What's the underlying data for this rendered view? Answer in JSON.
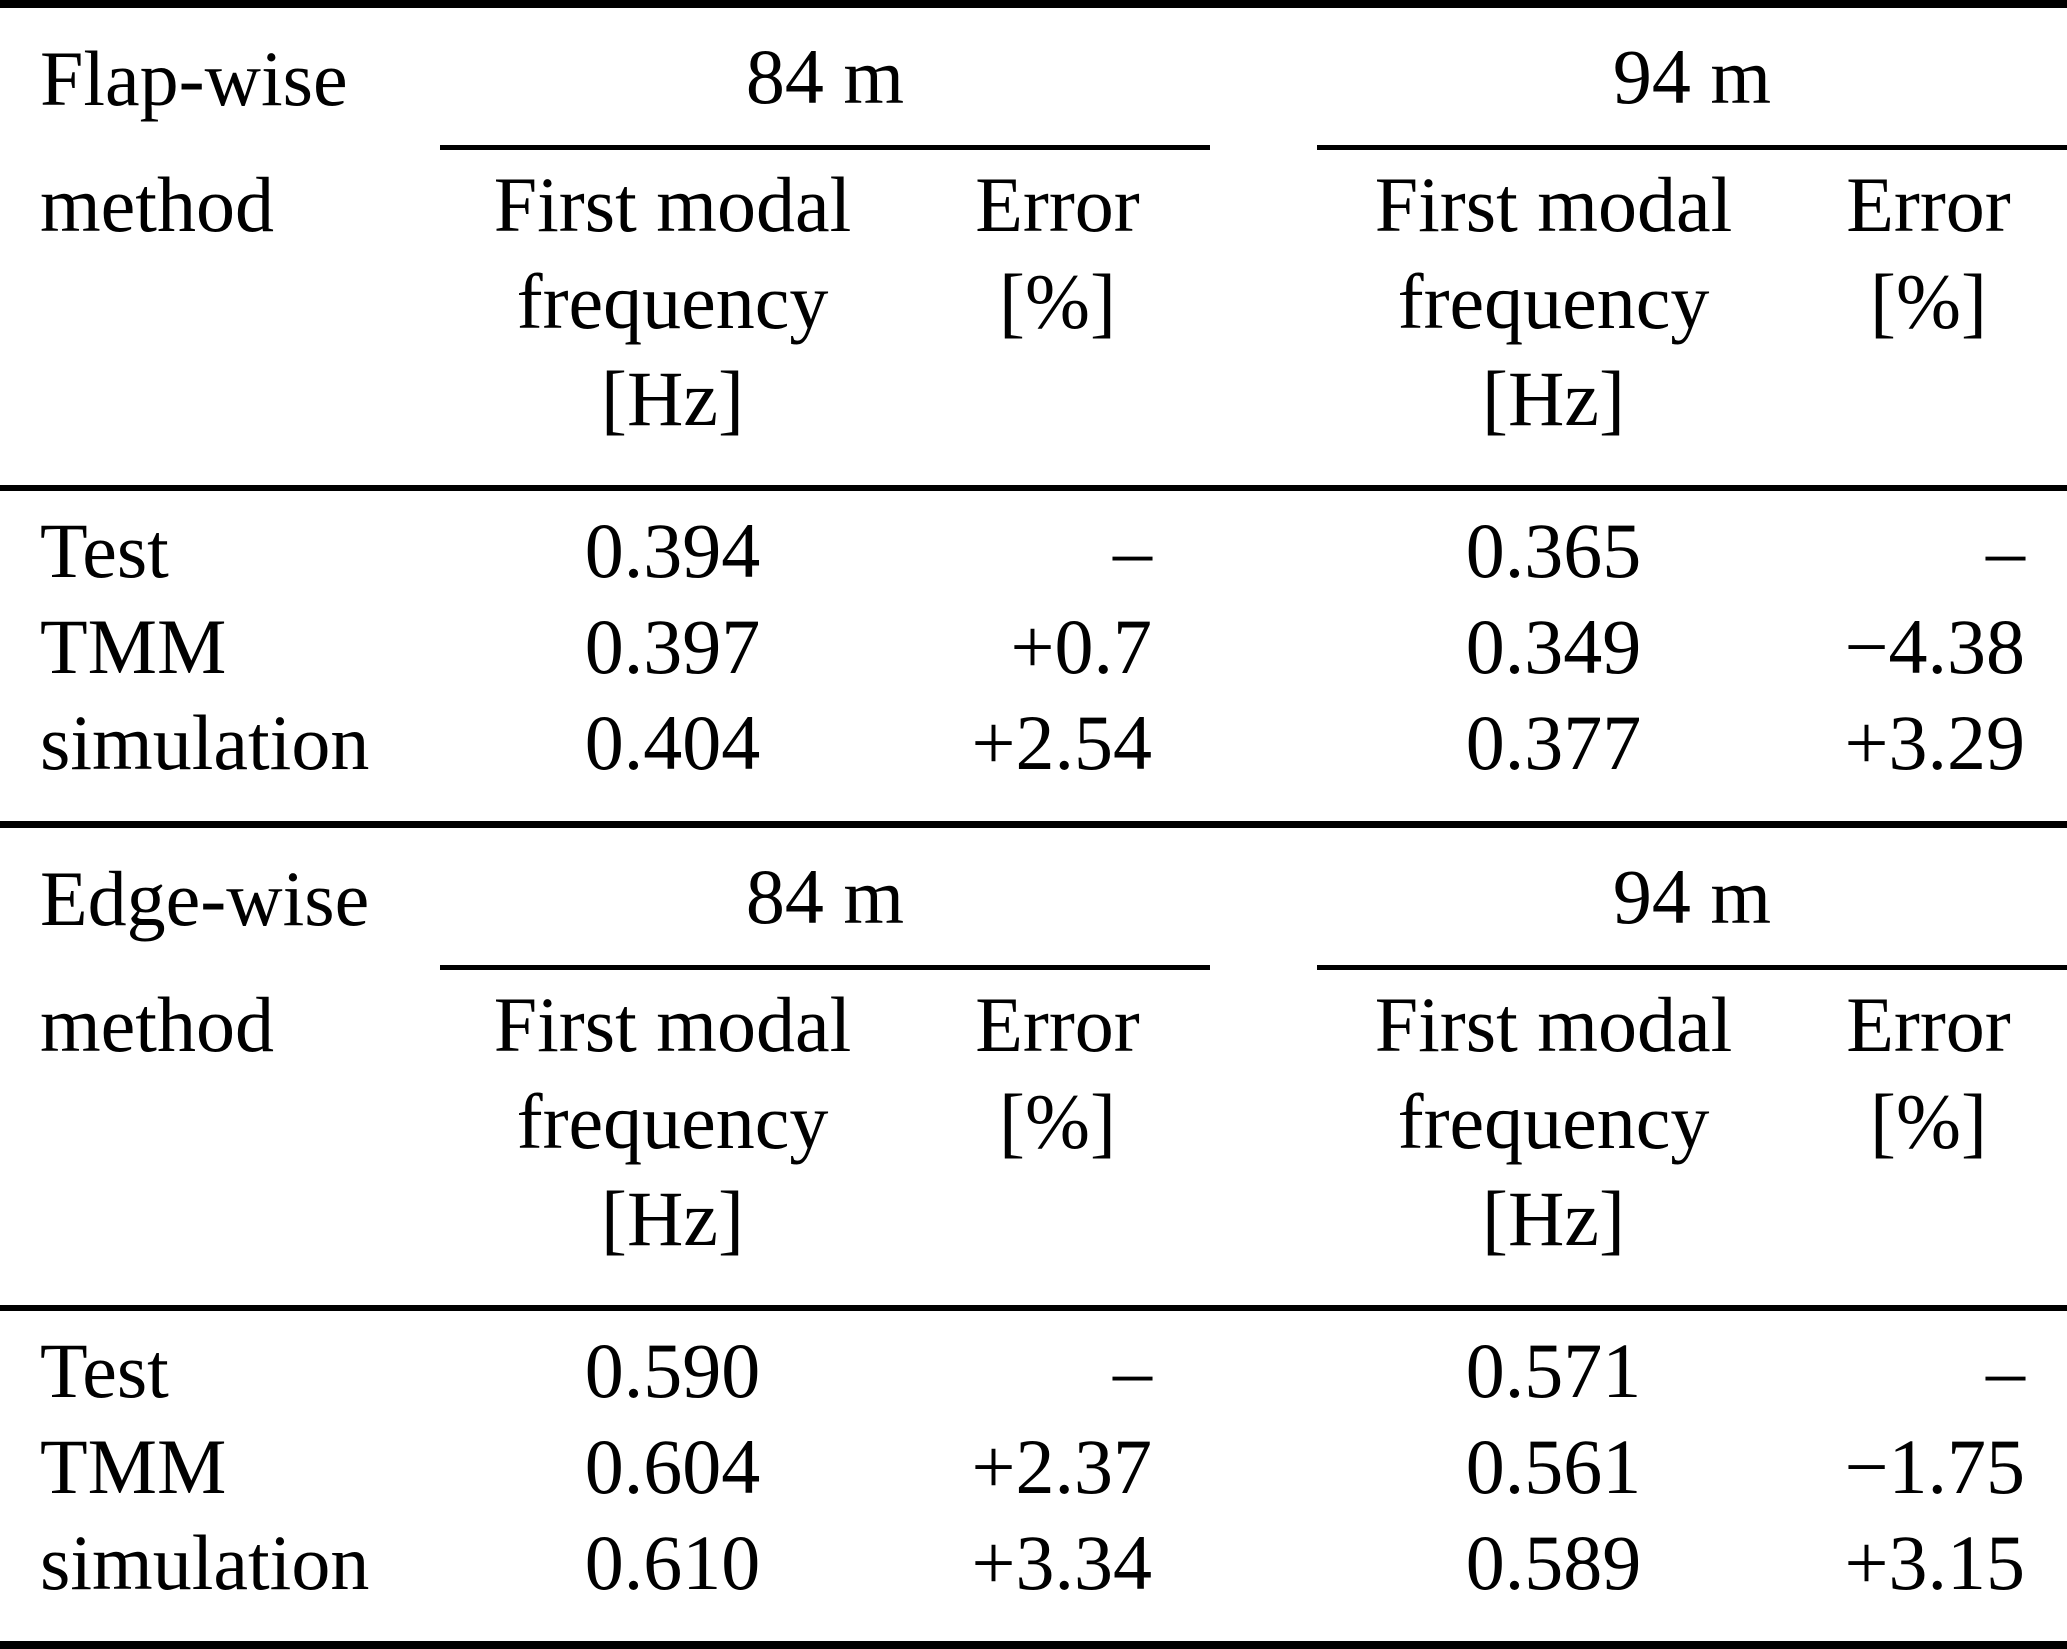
{
  "page": {
    "background_color": "#ffffff",
    "text_color": "#000000",
    "rule_color": "#000000"
  },
  "table": {
    "sections": [
      {
        "section_label": "Flap-wise",
        "method_header": "method",
        "groups": [
          {
            "group_label": "84 m",
            "freq_header_lines": [
              "First modal",
              "frequency",
              "[Hz]"
            ],
            "error_header_lines": [
              "Error",
              "[%]"
            ]
          },
          {
            "group_label": "94 m",
            "freq_header_lines": [
              "First modal",
              "frequency",
              "[Hz]"
            ],
            "error_header_lines": [
              "Error",
              "[%]"
            ]
          }
        ],
        "rows": [
          {
            "method": "Test",
            "freq_84m": "0.394",
            "error_84m": "–",
            "freq_94m": "0.365",
            "error_94m": "–"
          },
          {
            "method": "TMM",
            "freq_84m": "0.397",
            "error_84m": "+0.7",
            "freq_94m": "0.349",
            "error_94m": "−4.38"
          },
          {
            "method": "simulation",
            "freq_84m": "0.404",
            "error_84m": "+2.54",
            "freq_94m": "0.377",
            "error_94m": "+3.29"
          }
        ]
      },
      {
        "section_label": "Edge-wise",
        "method_header": "method",
        "groups": [
          {
            "group_label": "84 m",
            "freq_header_lines": [
              "First modal",
              "frequency",
              "[Hz]"
            ],
            "error_header_lines": [
              "Error",
              "[%]"
            ]
          },
          {
            "group_label": "94 m",
            "freq_header_lines": [
              "First modal",
              "frequency",
              "[Hz]"
            ],
            "error_header_lines": [
              "Error",
              "[%]"
            ]
          }
        ],
        "rows": [
          {
            "method": "Test",
            "freq_84m": "0.590",
            "error_84m": "–",
            "freq_94m": "0.571",
            "error_94m": "–"
          },
          {
            "method": "TMM",
            "freq_84m": "0.604",
            "error_84m": "+2.37",
            "freq_94m": "0.561",
            "error_94m": "−1.75"
          },
          {
            "method": "simulation",
            "freq_84m": "0.610",
            "error_84m": "+3.34",
            "freq_94m": "0.589",
            "error_94m": "+3.15"
          }
        ]
      }
    ]
  }
}
